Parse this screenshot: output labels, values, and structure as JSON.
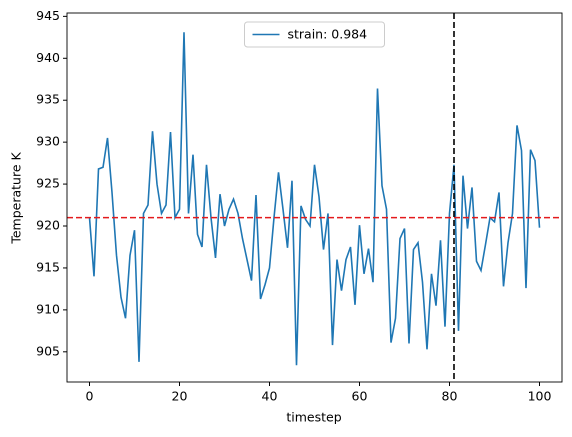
{
  "chart_data": {
    "type": "line",
    "xlabel": "timestep",
    "ylabel": "Temperature K",
    "x": [
      0,
      1,
      2,
      3,
      4,
      5,
      6,
      7,
      8,
      9,
      10,
      11,
      12,
      13,
      14,
      15,
      16,
      17,
      18,
      19,
      20,
      21,
      22,
      23,
      24,
      25,
      26,
      27,
      28,
      29,
      30,
      31,
      32,
      33,
      34,
      35,
      36,
      37,
      38,
      39,
      40,
      41,
      42,
      43,
      44,
      45,
      46,
      47,
      48,
      49,
      50,
      51,
      52,
      53,
      54,
      55,
      56,
      57,
      58,
      59,
      60,
      61,
      62,
      63,
      64,
      65,
      66,
      67,
      68,
      69,
      70,
      71,
      72,
      73,
      74,
      75,
      76,
      77,
      78,
      79,
      80,
      81,
      82,
      83,
      84,
      85,
      86,
      87,
      88,
      89,
      90,
      91,
      92,
      93,
      94,
      95,
      96,
      97,
      98,
      99,
      100
    ],
    "series": [
      {
        "name": "strain: 0.984",
        "color": "#1f77b4",
        "values": [
          921,
          914,
          926.8,
          927,
          930.5,
          924,
          916.5,
          911.5,
          909,
          916.5,
          919.5,
          903.8,
          921.5,
          922.5,
          931.3,
          925,
          921.5,
          922.5,
          931.2,
          921,
          922,
          943.1,
          921.5,
          928.5,
          919,
          917.5,
          927.3,
          921,
          916.2,
          923.8,
          920,
          922,
          923.2,
          921.5,
          918.5,
          916,
          913.5,
          923.7,
          911.3,
          913,
          915,
          921,
          926.4,
          922,
          917.4,
          925.4,
          903.4,
          922.4,
          920.8,
          920,
          927.3,
          923.5,
          917.2,
          921.5,
          905.8,
          916,
          912.3,
          916,
          917.5,
          910.6,
          920.1,
          914.3,
          917.3,
          913.3,
          936.4,
          924.8,
          922,
          906.1,
          909,
          918.5,
          919.7,
          906,
          917.2,
          918,
          913.3,
          905.3,
          914.3,
          910.5,
          918.3,
          908,
          921.5,
          927.3,
          907.5,
          926,
          919.7,
          924.6,
          915.8,
          914.7,
          917.8,
          921,
          920.5,
          924,
          912.8,
          918,
          921.5,
          932,
          929,
          912.6,
          929.1,
          927.8,
          919.8
        ]
      }
    ],
    "hline": 921,
    "hline_color": "#e41a1c",
    "vline": 81,
    "vline_color": "#000000",
    "xlim": [
      -5,
      105
    ],
    "xticks": [
      0,
      20,
      40,
      60,
      80,
      100
    ],
    "ylim": [
      901.4,
      945.4
    ],
    "yticks": [
      905,
      910,
      915,
      920,
      925,
      930,
      935,
      940,
      945
    ],
    "legend": "upper center"
  }
}
